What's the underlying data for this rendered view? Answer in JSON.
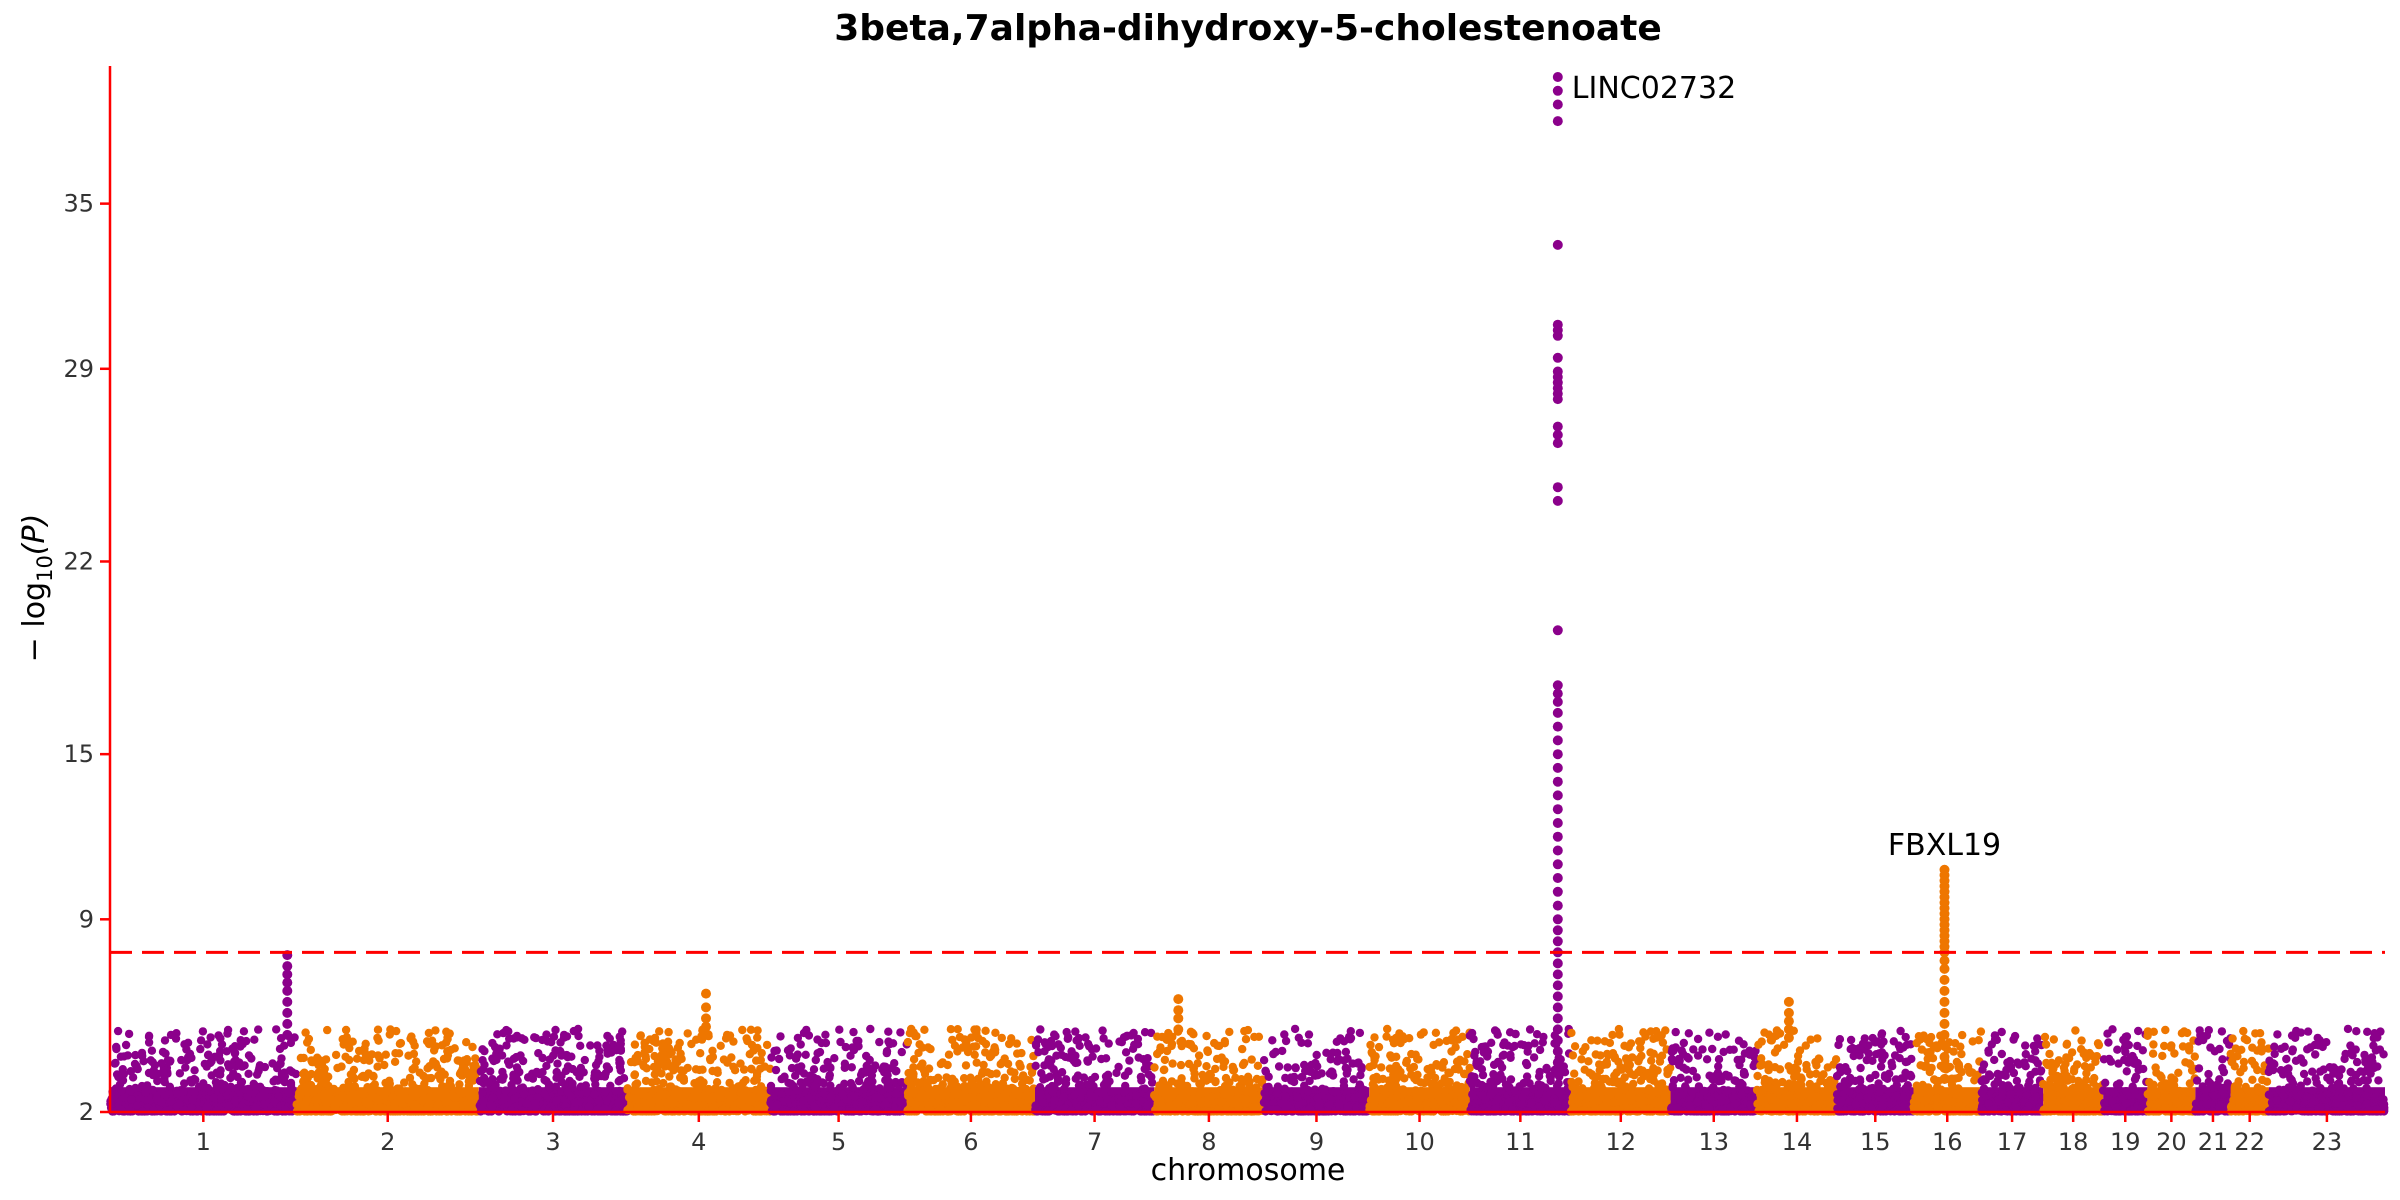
{
  "chart_data": {
    "type": "scatter",
    "title": "3beta,7alpha-dihydroxy-5-cholestenoate",
    "xlabel": "chromosome",
    "ylabel_parts": {
      "prefix": "− log",
      "sub": "10",
      "suffix": "(P)"
    },
    "ylim": [
      2,
      40
    ],
    "yticks": [
      2,
      9,
      15,
      22,
      29,
      35
    ],
    "threshold": 7.8,
    "colors": {
      "odd": "#8B008B",
      "even": "#EE7600",
      "axis": "#FF0000",
      "threshold": "#FF0000"
    },
    "chromosomes": [
      {
        "label": "1",
        "size": 249
      },
      {
        "label": "2",
        "size": 243
      },
      {
        "label": "3",
        "size": 198
      },
      {
        "label": "4",
        "size": 191
      },
      {
        "label": "5",
        "size": 182
      },
      {
        "label": "6",
        "size": 171
      },
      {
        "label": "7",
        "size": 159
      },
      {
        "label": "8",
        "size": 146
      },
      {
        "label": "9",
        "size": 141
      },
      {
        "label": "10",
        "size": 134
      },
      {
        "label": "11",
        "size": 135
      },
      {
        "label": "12",
        "size": 133
      },
      {
        "label": "13",
        "size": 115
      },
      {
        "label": "14",
        "size": 107
      },
      {
        "label": "15",
        "size": 102
      },
      {
        "label": "16",
        "size": 90
      },
      {
        "label": "17",
        "size": 83
      },
      {
        "label": "18",
        "size": 80
      },
      {
        "label": "19",
        "size": 59
      },
      {
        "label": "20",
        "size": 64
      },
      {
        "label": "21",
        "size": 47
      },
      {
        "label": "22",
        "size": 51
      },
      {
        "label": "23",
        "size": 155
      }
    ],
    "peaks": [
      {
        "chrom": "11",
        "pos": 0.87,
        "values": [
          39.6,
          39.1,
          38.6,
          38.0,
          33.5,
          30.6,
          30.4,
          30.2,
          29.4,
          28.9,
          28.7,
          28.5,
          28.3,
          28.1,
          27.9,
          26.9,
          26.6,
          26.3,
          24.7,
          24.2,
          19.5,
          17.5,
          17.2,
          16.9,
          16.5,
          16.0,
          15.5,
          15.0,
          14.5,
          14.0,
          13.5,
          13.0,
          12.5,
          12.0,
          11.5,
          11.0,
          10.5,
          10.0,
          9.5,
          9.0,
          8.6,
          8.2,
          7.8,
          7.4,
          7.0,
          6.6,
          6.2,
          5.8,
          5.4,
          5.0,
          4.6,
          4.2,
          3.8,
          3.4
        ]
      },
      {
        "chrom": "16",
        "pos": 0.46,
        "values": [
          10.8,
          10.6,
          10.4,
          10.2,
          10.0,
          9.8,
          9.6,
          9.4,
          9.2,
          9.0,
          8.8,
          8.6,
          8.4,
          8.2,
          8.0,
          7.8,
          7.5,
          7.2,
          6.8,
          6.4,
          6.0,
          5.6,
          5.2,
          4.8,
          4.4,
          4.0,
          3.6,
          3.2
        ]
      },
      {
        "chrom": "1",
        "pos": 0.95,
        "values": [
          7.7,
          7.3,
          7.0,
          6.7,
          6.4,
          6.0,
          5.6,
          5.2,
          4.8
        ]
      },
      {
        "chrom": "4",
        "pos": 0.55,
        "values": [
          6.3,
          5.8,
          5.4,
          5.1,
          4.8
        ]
      },
      {
        "chrom": "14",
        "pos": 0.4,
        "values": [
          6.0,
          5.6,
          5.3,
          5.0,
          4.7
        ]
      },
      {
        "chrom": "8",
        "pos": 0.22,
        "values": [
          6.1,
          5.7,
          5.4,
          5.0
        ]
      }
    ],
    "annotations": [
      {
        "text": "LINC02732",
        "chrom": "11",
        "pos": 0.87,
        "y": 39.2,
        "anchor": "start",
        "dx": 14
      },
      {
        "text": "FBXL19",
        "chrom": "16",
        "pos": 0.46,
        "y": 11.7,
        "anchor": "middle",
        "dx": 0
      }
    ]
  }
}
